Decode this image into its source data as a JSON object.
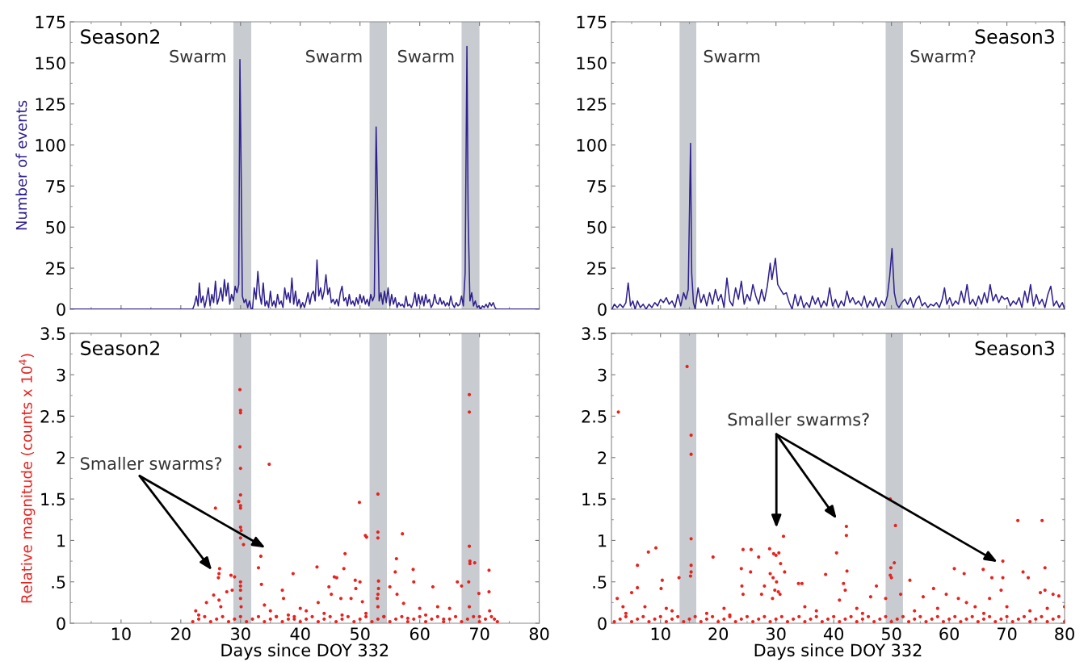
{
  "chart_data": [
    {
      "type": "line",
      "title": "Season2",
      "ylabel": "Number of events",
      "xlim": [
        1.5,
        80
      ],
      "ylim": [
        0,
        175
      ],
      "xticks": [
        10,
        20,
        30,
        40,
        50,
        60,
        70,
        80
      ],
      "yticks": [
        0,
        25,
        50,
        75,
        100,
        125,
        150,
        175
      ],
      "tick_labels": "y",
      "grid": false,
      "legend": false,
      "marker": "none",
      "line_style": "solid",
      "bands": [
        {
          "axis": "x",
          "from": 28.8,
          "to": 31.8,
          "color": "#c8ccd1",
          "label": "Swarm"
        },
        {
          "axis": "x",
          "from": 51.6,
          "to": 54.5,
          "color": "#c8ccd1",
          "label": "Swarm"
        },
        {
          "axis": "x",
          "from": 67.0,
          "to": 70.0,
          "color": "#c8ccd1",
          "label": "Swarm"
        }
      ],
      "series": [
        {
          "color": "#2e1f8f",
          "x": [
            1.5,
            22,
            22.3,
            22.6,
            22.9,
            23.1,
            23.4,
            23.7,
            24.0,
            24.3,
            24.6,
            24.9,
            25.2,
            25.5,
            25.8,
            26.1,
            26.4,
            26.7,
            27.0,
            27.3,
            27.6,
            27.9,
            28.2,
            28.5,
            28.8,
            29.1,
            29.4,
            29.7,
            29.9,
            30.1,
            30.3,
            30.6,
            30.9,
            31.2,
            31.5,
            31.8,
            32.0,
            32.3,
            32.6,
            32.9,
            33.2,
            33.5,
            33.8,
            34.1,
            34.4,
            34.7,
            35.0,
            35.3,
            35.6,
            35.9,
            36.2,
            36.5,
            36.8,
            37.1,
            37.4,
            37.7,
            38.0,
            38.3,
            38.6,
            38.9,
            39.2,
            39.5,
            39.8,
            40.1,
            40.4,
            40.7,
            41.0,
            41.3,
            41.6,
            41.9,
            42.2,
            42.5,
            42.8,
            43.1,
            43.4,
            43.7,
            44.0,
            44.3,
            44.6,
            44.9,
            45.2,
            45.5,
            45.8,
            46.1,
            46.4,
            46.7,
            47.0,
            47.3,
            47.6,
            47.9,
            48.2,
            48.5,
            48.8,
            49.1,
            49.4,
            49.7,
            50.0,
            50.3,
            50.6,
            50.9,
            51.2,
            51.5,
            51.8,
            52.1,
            52.4,
            52.7,
            52.9,
            53.2,
            53.5,
            53.8,
            54.1,
            54.4,
            54.7,
            55.0,
            55.3,
            55.6,
            55.9,
            56.2,
            56.5,
            56.8,
            57.1,
            57.4,
            57.7,
            58.0,
            58.3,
            58.6,
            58.9,
            59.2,
            59.5,
            59.8,
            60.1,
            60.4,
            60.7,
            61.0,
            61.3,
            61.6,
            61.9,
            62.2,
            62.5,
            62.8,
            63.1,
            63.4,
            63.7,
            64.0,
            64.3,
            64.6,
            64.9,
            65.2,
            65.5,
            65.8,
            66.1,
            66.4,
            66.7,
            67.0,
            67.3,
            67.6,
            67.9,
            68.1,
            68.4,
            68.7,
            69.0,
            69.3,
            69.6,
            69.9,
            70.2,
            70.5,
            70.8,
            71.1,
            71.4,
            71.7,
            72.0,
            72.3,
            72.6,
            72.8,
            80
          ],
          "values": [
            0,
            0,
            3,
            8,
            2,
            16,
            4,
            8,
            1,
            6,
            13,
            2,
            9,
            4,
            17,
            3,
            7,
            13,
            5,
            18,
            8,
            16,
            3,
            9,
            5,
            14,
            10,
            15,
            152,
            85,
            8,
            4,
            6,
            1,
            5,
            0,
            0,
            13,
            6,
            23,
            9,
            3,
            16,
            2,
            5,
            1,
            11,
            2,
            5,
            1,
            9,
            3,
            5,
            1,
            13,
            6,
            10,
            4,
            19,
            3,
            11,
            2,
            6,
            1,
            4,
            1,
            5,
            10,
            3,
            9,
            11,
            5,
            30,
            8,
            13,
            6,
            11,
            21,
            9,
            13,
            4,
            6,
            3,
            6,
            2,
            10,
            14,
            5,
            7,
            2,
            9,
            3,
            5,
            2,
            7,
            3,
            9,
            4,
            8,
            3,
            6,
            2,
            9,
            5,
            8,
            111,
            74,
            5,
            10,
            3,
            11,
            4,
            13,
            2,
            9,
            3,
            7,
            1,
            4,
            2,
            3,
            1,
            8,
            2,
            3,
            1,
            4,
            10,
            2,
            9,
            3,
            8,
            2,
            9,
            4,
            6,
            1,
            3,
            9,
            4,
            3,
            7,
            3,
            5,
            2,
            4,
            2,
            8,
            3,
            1,
            4,
            2,
            3,
            8,
            2,
            22,
            160,
            57,
            5,
            10,
            2,
            5,
            1,
            2,
            0,
            2,
            1,
            3,
            1,
            4,
            2,
            4,
            1,
            0,
            0
          ]
        }
      ]
    },
    {
      "type": "line",
      "title": "Season3",
      "xlim": [
        1.5,
        80
      ],
      "ylim": [
        0,
        175
      ],
      "xticks": [
        10,
        20,
        30,
        40,
        50,
        60,
        70,
        80
      ],
      "yticks": [
        0,
        25,
        50,
        75,
        100,
        125,
        150,
        175
      ],
      "tick_labels": "y",
      "grid": false,
      "legend": false,
      "marker": "none",
      "line_style": "solid",
      "bands": [
        {
          "axis": "x",
          "from": 13.3,
          "to": 16.2,
          "color": "#c8ccd1",
          "label": "Swarm"
        },
        {
          "axis": "x",
          "from": 49.0,
          "to": 52.0,
          "color": "#c8ccd1",
          "label": "Swarm?"
        }
      ],
      "series": [
        {
          "color": "#2e1f8f",
          "x": [
            1.6,
            2.0,
            2.5,
            3.0,
            3.5,
            4.0,
            4.4,
            4.8,
            5.2,
            5.6,
            6.0,
            6.5,
            7.0,
            7.5,
            8.0,
            8.5,
            9.0,
            9.5,
            10.0,
            10.5,
            11.0,
            11.5,
            12.0,
            12.5,
            13.0,
            13.5,
            14.0,
            14.4,
            14.8,
            15.2,
            15.4,
            15.7,
            16.0,
            16.5,
            17.0,
            17.5,
            18.0,
            18.5,
            19.0,
            19.5,
            20.0,
            20.5,
            21.0,
            21.5,
            22.0,
            22.5,
            23.0,
            23.5,
            24.0,
            24.5,
            25.0,
            25.5,
            26.0,
            26.5,
            27.0,
            27.5,
            28.0,
            28.5,
            29.0,
            29.3,
            29.9,
            30.3,
            30.8,
            31.3,
            31.8,
            32.3,
            32.8,
            33.3,
            33.8,
            34.3,
            34.8,
            35.3,
            35.8,
            36.3,
            36.8,
            37.3,
            37.8,
            38.3,
            38.8,
            39.3,
            39.8,
            40.3,
            40.8,
            41.3,
            41.8,
            42.3,
            42.8,
            43.3,
            43.8,
            44.3,
            44.8,
            45.3,
            45.8,
            46.3,
            46.8,
            47.3,
            47.8,
            48.3,
            48.8,
            49.3,
            49.7,
            50.1,
            50.5,
            50.9,
            51.3,
            51.8,
            52.3,
            52.8,
            53.3,
            53.8,
            54.3,
            54.8,
            55.3,
            55.8,
            56.3,
            56.8,
            57.3,
            57.8,
            58.3,
            58.8,
            59.2,
            59.6,
            60.1,
            60.6,
            61.1,
            61.6,
            62.1,
            62.6,
            63.1,
            63.6,
            64.1,
            64.6,
            65.1,
            65.6,
            66.1,
            66.6,
            67.1,
            67.6,
            68.1,
            68.6,
            69.1,
            69.6,
            70.1,
            70.6,
            71.1,
            71.6,
            72.1,
            72.6,
            73.1,
            73.6,
            74.1,
            74.6,
            75.1,
            75.6,
            76.1,
            76.6,
            77.1,
            77.6,
            78.1,
            78.6,
            79.1,
            79.6,
            80.0
          ],
          "values": [
            0,
            3,
            1,
            3,
            1,
            4,
            16,
            2,
            5,
            0,
            5,
            1,
            3,
            0,
            3,
            1,
            4,
            2,
            6,
            4,
            7,
            3,
            5,
            1,
            9,
            2,
            10,
            6,
            12,
            101,
            22,
            4,
            0,
            13,
            4,
            9,
            2,
            10,
            3,
            12,
            5,
            9,
            1,
            19,
            5,
            2,
            13,
            6,
            17,
            3,
            9,
            5,
            15,
            8,
            3,
            12,
            5,
            14,
            28,
            18,
            31,
            15,
            12,
            9,
            10,
            4,
            0,
            9,
            2,
            8,
            1,
            4,
            1,
            8,
            3,
            7,
            1,
            5,
            2,
            13,
            2,
            6,
            1,
            5,
            2,
            11,
            4,
            7,
            3,
            5,
            2,
            8,
            1,
            5,
            2,
            7,
            1,
            5,
            2,
            8,
            20,
            37,
            10,
            3,
            1,
            4,
            6,
            3,
            7,
            1,
            6,
            8,
            2,
            4,
            1,
            3,
            2,
            4,
            1,
            6,
            13,
            3,
            7,
            2,
            5,
            3,
            11,
            4,
            15,
            3,
            6,
            2,
            8,
            3,
            10,
            4,
            15,
            5,
            9,
            4,
            8,
            6,
            7,
            2,
            5,
            3,
            7,
            1,
            11,
            4,
            15,
            2,
            9,
            3,
            6,
            1,
            9,
            14,
            2,
            5,
            1,
            4,
            0
          ]
        }
      ]
    },
    {
      "type": "scatter",
      "title": "Season2",
      "xlabel": "Days since DOY 332",
      "ylabel": "Relative magnitude (counts x 10$^{4}$)",
      "xlim": [
        1.5,
        80
      ],
      "ylim": [
        0,
        3.5
      ],
      "xticks": [
        10,
        20,
        30,
        40,
        50,
        60,
        70,
        80
      ],
      "yticks": [
        0,
        {
          "value": 0.5,
          "label": ".5"
        },
        1,
        1.5,
        2,
        2.5,
        3,
        3.5
      ],
      "grid": false,
      "legend": false,
      "marker": "circle",
      "bands": [
        {
          "axis": "x",
          "from": 28.8,
          "to": 31.8,
          "color": "#c8ccd1"
        },
        {
          "axis": "x",
          "from": 51.6,
          "to": 54.5,
          "color": "#c8ccd1"
        },
        {
          "axis": "x",
          "from": 67.0,
          "to": 70.0,
          "color": "#c8ccd1"
        }
      ],
      "annotations": [
        "Smaller swarms?"
      ],
      "series": [
        {
          "color": "#e8221e",
          "x": [
            25.8,
            29.9,
            30.0,
            30.0,
            29.9,
            30.0,
            30.0,
            29.7,
            30.0,
            30.0,
            30.0,
            30.1,
            30.0,
            30.5,
            34.8,
            33.4,
            26.5,
            26.3,
            26.4,
            33.0,
            33.5,
            38.8,
            42.8,
            47.5,
            49.9,
            50.9,
            51.1,
            53.0,
            53.0,
            53.0,
            57.1,
            56.1,
            55.9,
            58.9,
            62.2,
            68.3,
            68.3,
            68.3,
            68.4,
            68.4,
            69.2,
            71.6,
            71.6,
            47.3,
            45.7,
            46.1,
            49.2,
            50.0,
            53.1,
            53.1,
            53.0,
            52.9,
            53.0,
            30.0,
            30.0,
            30.0,
            30.0,
            30.1,
            29.0,
            28.4,
            28.6,
            27.7,
            24.3,
            25.5,
            26.4,
            26.7,
            22.5,
            23.0,
            44.8,
            45.2,
            46.8,
            48.5,
            49.3,
            50.4,
            55.0,
            56.2,
            57.3,
            59.0,
            60.0,
            63.0,
            65.0,
            66.3,
            67.0,
            68.2,
            68.3,
            69.9,
            71.7,
            72.5,
            37.0,
            37.2,
            40.0,
            41.0,
            43.0,
            34.0,
            35.0,
            36.0,
            38.0,
            39.0,
            44.0,
            47.0,
            51.0,
            54.0,
            58.0,
            61.0,
            64.0,
            70.0
          ],
          "values": [
            1.39,
            2.82,
            2.57,
            2.54,
            2.13,
            1.87,
            1.55,
            1.47,
            1.42,
            1.39,
            1.16,
            1.12,
            1.03,
            0.95,
            1.92,
            0.81,
            0.66,
            0.55,
            0.6,
            0.67,
            0.47,
            0.6,
            0.68,
            0.84,
            1.46,
            1.06,
            1.04,
            1.56,
            1.1,
            1.03,
            1.08,
            0.78,
            0.62,
            0.65,
            0.44,
            2.76,
            2.55,
            0.93,
            0.75,
            0.72,
            0.73,
            0.64,
            0.38,
            0.66,
            0.56,
            0.55,
            0.52,
            0.5,
            0.51,
            0.42,
            0.35,
            0.3,
            0.2,
            0.5,
            0.45,
            0.4,
            0.3,
            0.2,
            0.56,
            0.58,
            0.4,
            0.38,
            0.25,
            0.34,
            0.28,
            0.2,
            0.15,
            0.1,
            0.44,
            0.35,
            0.3,
            0.3,
            0.42,
            0.26,
            0.44,
            0.35,
            0.24,
            0.5,
            0.18,
            0.2,
            0.18,
            0.5,
            0.45,
            0.5,
            0.2,
            0.36,
            0.15,
            0.05,
            0.4,
            0.3,
            0.18,
            0.15,
            0.25,
            0.22,
            0.15,
            0.08,
            0.1,
            0.05,
            0.12,
            0.1,
            0.12,
            0.08,
            0.06,
            0.1,
            0.05,
            0.08
          ]
        },
        {
          "color": "#e8221e",
          "x": [
            22,
            23,
            24,
            25,
            26,
            27,
            28,
            29,
            30,
            31,
            32,
            33,
            34,
            35,
            36,
            37,
            38,
            39,
            40,
            41,
            42,
            43,
            44,
            45,
            46,
            47,
            48,
            49,
            50,
            51,
            52,
            53,
            54,
            55,
            56,
            57,
            58,
            59,
            60,
            61,
            62,
            63,
            64,
            65,
            66,
            67,
            68,
            69,
            70,
            71,
            72,
            73
          ],
          "values": [
            0.02,
            0.05,
            0.08,
            0.02,
            0.05,
            0.08,
            0.02,
            0.05,
            0.08,
            0.02,
            0.05,
            0.08,
            0.02,
            0.05,
            0.08,
            0.02,
            0.05,
            0.08,
            0.02,
            0.05,
            0.08,
            0.02,
            0.05,
            0.08,
            0.02,
            0.05,
            0.08,
            0.02,
            0.05,
            0.08,
            0.02,
            0.05,
            0.08,
            0.02,
            0.05,
            0.08,
            0.02,
            0.05,
            0.08,
            0.02,
            0.05,
            0.08,
            0.02,
            0.05,
            0.08,
            0.02,
            0.05,
            0.08,
            0.02,
            0.05,
            0.08,
            0.02
          ]
        }
      ]
    },
    {
      "type": "scatter",
      "title": "Season3",
      "xlabel": "Days since DOY 332",
      "xlim": [
        1.5,
        80
      ],
      "ylim": [
        0,
        3.5
      ],
      "xticks": [
        10,
        20,
        30,
        40,
        50,
        60,
        70,
        80
      ],
      "yticks": [
        0,
        {
          "value": 0.5,
          "label": ".5"
        },
        1,
        1.5,
        2,
        2.5,
        3,
        3.5
      ],
      "grid": false,
      "legend": false,
      "marker": "circle",
      "bands": [
        {
          "axis": "x",
          "from": 13.3,
          "to": 16.2,
          "color": "#c8ccd1"
        },
        {
          "axis": "x",
          "from": 49.0,
          "to": 52.0,
          "color": "#c8ccd1"
        }
      ],
      "annotations": [
        "Smaller swarms?"
      ],
      "series": [
        {
          "color": "#e8221e",
          "x": [
            2.7,
            14.6,
            15.3,
            15.3,
            15.3,
            15.3,
            15.3,
            15.2,
            13.2,
            6.0,
            7.9,
            9.2,
            10.3,
            10.1,
            5.0,
            6.0,
            19.1,
            24.3,
            25.7,
            27.0,
            24.0,
            25.6,
            24.1,
            24.3,
            28.9,
            29.6,
            30.0,
            30.5,
            31.3,
            30.8,
            31.5,
            29.0,
            29.5,
            30.1,
            29.8,
            30.4,
            30.7,
            29.4,
            28.0,
            27.5,
            33.9,
            34.5,
            38.6,
            40.5,
            42.2,
            42.2,
            42.3,
            41.7,
            42.0,
            41.0,
            47.4,
            46.4,
            49.8,
            50.7,
            50.5,
            49.9,
            49.8,
            50.0,
            49.0,
            51.6,
            53.2,
            55.5,
            57.3,
            59.5,
            60.9,
            62.6,
            61.6,
            65.9,
            67.4,
            69.3,
            69.3,
            69.0,
            71.9,
            72.8,
            73.7,
            76.1,
            76.6,
            76.6,
            78.0,
            79.0,
            75.8,
            67.0,
            64.5,
            63.0,
            2.5,
            3.5,
            4.0,
            7.3,
            11.0,
            12.0,
            18.0,
            21.0,
            22.0,
            35.0,
            37.0,
            44.0,
            45.0,
            54.0,
            58.0,
            66.0,
            70.0,
            74.0,
            77.0,
            80.0
          ],
          "values": [
            2.55,
            3.1,
            2.27,
            2.04,
            1.02,
            0.7,
            0.62,
            0.57,
            0.55,
            0.7,
            0.86,
            0.91,
            0.52,
            0.42,
            0.37,
            0.43,
            0.8,
            0.89,
            0.89,
            0.8,
            0.66,
            0.62,
            0.45,
            0.35,
            0.9,
            0.84,
            0.82,
            0.85,
            1.05,
            0.72,
            0.62,
            0.6,
            0.55,
            0.5,
            0.4,
            0.38,
            0.35,
            0.3,
            0.45,
            0.35,
            0.48,
            0.48,
            0.59,
            0.85,
            1.17,
            1.06,
            0.63,
            0.48,
            0.4,
            0.28,
            0.45,
            0.32,
            1.5,
            1.18,
            0.73,
            0.67,
            0.58,
            0.55,
            0.3,
            0.35,
            0.52,
            0.32,
            0.42,
            0.35,
            0.66,
            0.6,
            0.3,
            0.65,
            0.55,
            0.75,
            0.55,
            0.4,
            1.24,
            0.62,
            0.55,
            1.24,
            0.67,
            0.4,
            0.35,
            0.33,
            0.37,
            0.3,
            0.2,
            0.25,
            0.3,
            0.2,
            0.12,
            0.2,
            0.18,
            0.15,
            0.12,
            0.18,
            0.1,
            0.2,
            0.15,
            0.18,
            0.12,
            0.15,
            0.18,
            0.12,
            0.2,
            0.15,
            0.18,
            0.2
          ]
        },
        {
          "color": "#e8221e",
          "x": [
            2,
            3,
            4,
            5,
            6,
            7,
            8,
            9,
            10,
            11,
            12,
            13,
            14,
            15,
            16,
            17,
            18,
            19,
            20,
            21,
            22,
            23,
            24,
            25,
            26,
            27,
            28,
            29,
            30,
            31,
            32,
            33,
            34,
            35,
            36,
            37,
            38,
            39,
            40,
            41,
            42,
            43,
            44,
            45,
            46,
            47,
            48,
            49,
            50,
            51,
            52,
            53,
            54,
            55,
            56,
            57,
            58,
            59,
            60,
            61,
            62,
            63,
            64,
            65,
            66,
            67,
            68,
            69,
            70,
            71,
            72,
            73,
            74,
            75,
            76,
            77,
            78,
            79,
            80
          ],
          "values": [
            0.02,
            0.05,
            0.08,
            0.02,
            0.05,
            0.08,
            0.02,
            0.05,
            0.08,
            0.02,
            0.05,
            0.08,
            0.02,
            0.05,
            0.08,
            0.02,
            0.05,
            0.08,
            0.02,
            0.05,
            0.08,
            0.02,
            0.05,
            0.08,
            0.02,
            0.05,
            0.08,
            0.02,
            0.05,
            0.08,
            0.02,
            0.05,
            0.08,
            0.02,
            0.05,
            0.08,
            0.02,
            0.05,
            0.08,
            0.02,
            0.05,
            0.08,
            0.02,
            0.05,
            0.08,
            0.02,
            0.05,
            0.08,
            0.02,
            0.05,
            0.08,
            0.02,
            0.05,
            0.08,
            0.02,
            0.05,
            0.08,
            0.02,
            0.05,
            0.08,
            0.02,
            0.05,
            0.08,
            0.02,
            0.05,
            0.08,
            0.02,
            0.05,
            0.08,
            0.02,
            0.05,
            0.08,
            0.02,
            0.05,
            0.08,
            0.02,
            0.05,
            0.08,
            0.02
          ]
        }
      ]
    }
  ]
}
